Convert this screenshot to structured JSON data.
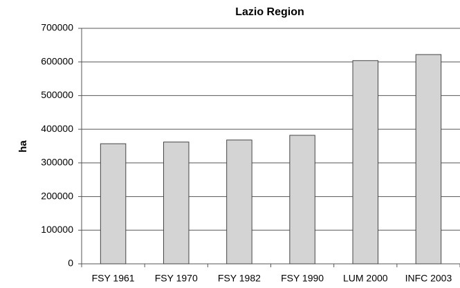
{
  "chart_data": {
    "type": "bar",
    "title": "Lazio Region",
    "y_label": "ha",
    "categories": [
      "FSY 1961",
      "FSY 1970",
      "FSY 1982",
      "FSY 1990",
      "LUM 2000",
      "INFC 2003"
    ],
    "values": [
      357000,
      362000,
      368000,
      382000,
      604000,
      622000
    ],
    "color": "#d4d4d4",
    "ylim": [
      0,
      700000
    ],
    "yticks": [
      0,
      100000,
      200000,
      300000,
      400000,
      500000,
      600000,
      700000
    ],
    "grid": true
  }
}
